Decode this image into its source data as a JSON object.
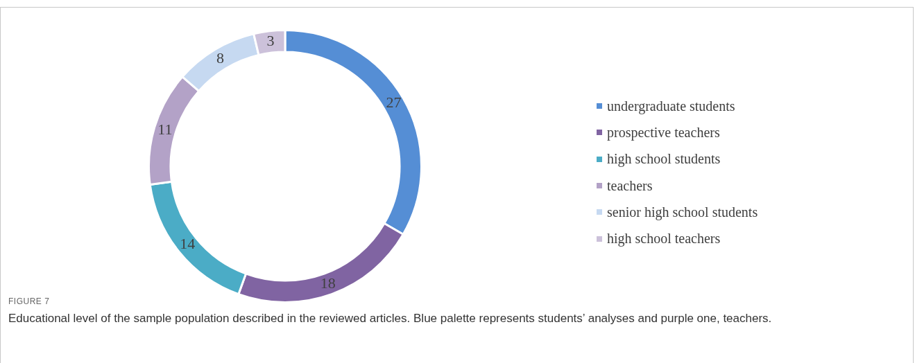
{
  "chart_data": {
    "type": "donut",
    "categories": [
      "undergraduate students",
      "prospective teachers",
      "high school students",
      "teachers",
      "senior high school students",
      "high school teachers"
    ],
    "values": [
      27,
      18,
      14,
      11,
      8,
      3
    ],
    "colors": [
      "#558ed5",
      "#8064a2",
      "#4bacc6",
      "#b3a2c7",
      "#c6d9f1",
      "#ccc1da"
    ],
    "data_labels": true,
    "legend": "right",
    "annotations": [
      "FIGURE 7",
      "Educational level of the sample population described in the reviewed articles. Blue palette represents students’ analyses and purple one, teachers."
    ]
  }
}
